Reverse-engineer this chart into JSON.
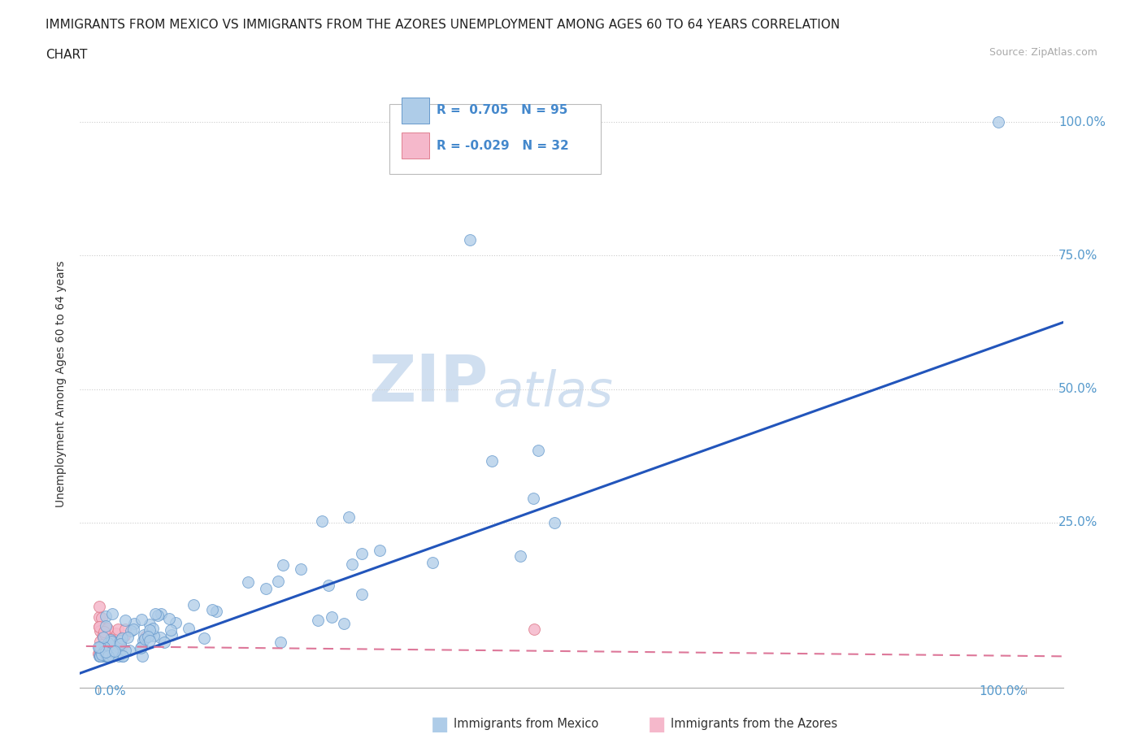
{
  "title_line1": "IMMIGRANTS FROM MEXICO VS IMMIGRANTS FROM THE AZORES UNEMPLOYMENT AMONG AGES 60 TO 64 YEARS CORRELATION",
  "title_line2": "CHART",
  "source_text": "Source: ZipAtlas.com",
  "ylabel": "Unemployment Among Ages 60 to 64 years",
  "legend_R_mexico": "0.705",
  "legend_N_mexico": "95",
  "legend_R_azores": "-0.029",
  "legend_N_azores": "32",
  "mexico_color": "#aecce8",
  "mexico_edge_color": "#6699cc",
  "azores_color": "#f5b8cb",
  "azores_edge_color": "#e08090",
  "trend_mexico_color": "#2255bb",
  "trend_azores_color": "#dd7799",
  "background_color": "#ffffff",
  "grid_color": "#cccccc",
  "watermark_ZIP": "ZIP",
  "watermark_atlas": "atlas",
  "watermark_color": "#d0dff0",
  "title_color": "#222222",
  "axis_label_color": "#333333",
  "tick_label_color_right": "#5599cc",
  "tick_label_color_bottom": "#5599cc",
  "legend_text_color": "#4488cc",
  "marker_size": 100
}
